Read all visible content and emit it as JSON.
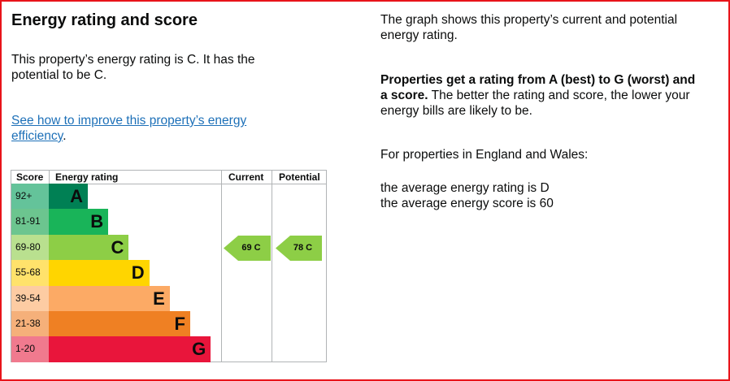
{
  "left": {
    "title": "Energy rating and score",
    "intro": "This property’s energy rating is C. It has the potential to be C.",
    "link": "See how to improve this property’s energy efficiency",
    "link_suffix": "."
  },
  "table": {
    "headers": {
      "score": "Score",
      "rating": "Energy rating",
      "current": "Current",
      "potential": "Potential"
    },
    "rows": [
      {
        "score": "92+",
        "letter": "A",
        "bar_color": "#008054",
        "score_bg": "#64c39a"
      },
      {
        "score": "81-91",
        "letter": "B",
        "bar_color": "#19b459",
        "score_bg": "#6cc58f"
      },
      {
        "score": "69-80",
        "letter": "C",
        "bar_color": "#8dce46",
        "score_bg": "#b9e08f"
      },
      {
        "score": "55-68",
        "letter": "D",
        "bar_color": "#ffd500",
        "score_bg": "#ffe26b"
      },
      {
        "score": "39-54",
        "letter": "E",
        "bar_color": "#fcaa65",
        "score_bg": "#fdcca3"
      },
      {
        "score": "21-38",
        "letter": "F",
        "bar_color": "#ef8023",
        "score_bg": "#f5b07a"
      },
      {
        "score": "1-20",
        "letter": "G",
        "bar_color": "#e9153b",
        "score_bg": "#f07a8e"
      }
    ],
    "current": {
      "label": "69  C",
      "score": 69,
      "rating": "C",
      "color": "#8dce46"
    },
    "potential": {
      "label": "78  C",
      "score": 78,
      "rating": "C",
      "color": "#8dce46"
    }
  },
  "right": {
    "p1": "The graph shows this property’s current and potential energy rating.",
    "p2_bold": "Properties get a rating from A (best) to G (worst) and a score.",
    "p2_rest": " The better the rating and score, the lower your energy bills are likely to be.",
    "p3": "For properties in England and Wales:",
    "p4a": "the average energy rating is D",
    "p4b": "the average energy score is 60"
  }
}
